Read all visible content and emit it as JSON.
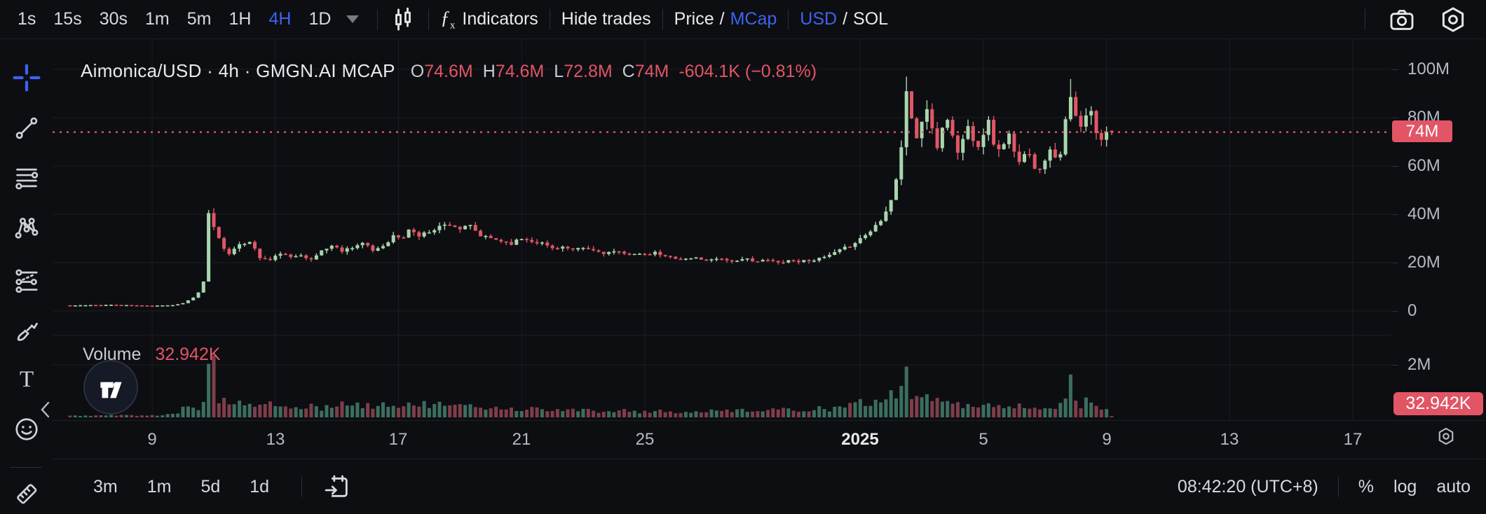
{
  "topbar": {
    "timeframes": [
      "1s",
      "15s",
      "30s",
      "1m",
      "5m",
      "1H",
      "4H",
      "1D"
    ],
    "active_timeframe": "4H",
    "indicators_label": "Indicators",
    "hide_trades_label": "Hide trades",
    "price_label": "Price",
    "mcap_label": "MCap",
    "usd_label": "USD",
    "sol_label": "SOL",
    "slash": "/"
  },
  "sidebar": {
    "active_tool": "crosshair-tool",
    "tools": [
      "crosshair-tool",
      "trend-line-tool",
      "fib-retracement-tool",
      "xabcd-pattern-tool",
      "long-position-tool",
      "brush-tool",
      "text-tool",
      "emoji-tool",
      "measure-tool"
    ]
  },
  "chart": {
    "title": "Aimonica/USD · 4h · GMGN.AI MCAP",
    "ohlc": {
      "o_label": "O",
      "o": "74.6M",
      "h_label": "H",
      "h": "74.6M",
      "l_label": "L",
      "l": "72.8M",
      "c_label": "C",
      "c": "74M",
      "change": "-604.1K (−0.81%)"
    },
    "current_price_label": "74M",
    "volume": {
      "label": "Volume",
      "value": "32.942K",
      "axis_label": "2M",
      "badge": "32.942K"
    }
  },
  "bottom_bar": {
    "ranges": [
      "3m",
      "1m",
      "5d",
      "1d"
    ],
    "time": "08:42:20 (UTC+8)",
    "percent": "%",
    "log": "log",
    "auto": "auto"
  },
  "colors": {
    "background": "#0d0e12",
    "accent_blue": "#3d63f0",
    "candle_up": "#a8d6ad",
    "candle_down": "#e25666",
    "volume_up": "#3c6e5f",
    "volume_down": "#7e3e4a",
    "badge_red": "#e25565",
    "grid": "#1a1d23",
    "text_primary": "#e8eaed",
    "text_secondary": "#b6bac3"
  },
  "chart_data": {
    "type": "candlestick",
    "symbol": "Aimonica/USD",
    "interval": "4h",
    "source": "GMGN.AI",
    "scale": "MCAP",
    "ohlc_current": {
      "open": "74.6M",
      "high": "74.6M",
      "low": "72.8M",
      "close": "74M",
      "change": "-604.1K (−0.81%)"
    },
    "y_axis": {
      "unit": "USD market cap, millions",
      "ticks": [
        100,
        80,
        60,
        40,
        20,
        0
      ],
      "tick_labels": [
        "100M",
        "80M",
        "60M",
        "40M",
        "20M",
        "0"
      ],
      "current_price": 74
    },
    "volume_axis": {
      "ticks": [
        2
      ],
      "tick_labels": [
        "2M"
      ],
      "current_volume": "32.942K"
    },
    "time_axis": [
      {
        "label": "9",
        "index": 16
      },
      {
        "label": "13",
        "index": 40
      },
      {
        "label": "17",
        "index": 64
      },
      {
        "label": "21",
        "index": 88
      },
      {
        "label": "25",
        "index": 112
      },
      {
        "label": "2025",
        "index": 154,
        "bold": true
      },
      {
        "label": "5",
        "index": 178
      },
      {
        "label": "9",
        "index": 202
      },
      {
        "label": "13",
        "index": 226
      },
      {
        "label": "17",
        "index": 250
      }
    ],
    "candle_count": 204,
    "price_keypoints": [
      [
        0,
        2.3
      ],
      [
        8,
        2.5
      ],
      [
        16,
        2.2
      ],
      [
        20,
        2.4
      ],
      [
        22,
        3.2
      ],
      [
        24,
        5.5
      ],
      [
        25,
        7.5
      ],
      [
        26,
        12
      ],
      [
        27,
        40
      ],
      [
        28,
        35
      ],
      [
        29,
        30
      ],
      [
        30,
        26
      ],
      [
        31,
        24
      ],
      [
        33,
        27
      ],
      [
        35,
        29
      ],
      [
        37,
        22
      ],
      [
        39,
        21
      ],
      [
        41,
        24
      ],
      [
        43,
        22
      ],
      [
        45,
        23.5
      ],
      [
        47,
        21
      ],
      [
        49,
        25
      ],
      [
        51,
        27
      ],
      [
        53,
        25
      ],
      [
        55,
        26.5
      ],
      [
        57,
        28
      ],
      [
        59,
        25
      ],
      [
        61,
        27
      ],
      [
        63,
        31
      ],
      [
        65,
        30
      ],
      [
        66,
        34
      ],
      [
        68,
        31
      ],
      [
        70,
        33
      ],
      [
        72,
        35
      ],
      [
        74,
        36
      ],
      [
        76,
        34
      ],
      [
        78,
        35
      ],
      [
        80,
        31
      ],
      [
        82,
        30
      ],
      [
        84,
        29
      ],
      [
        86,
        28
      ],
      [
        88,
        30
      ],
      [
        90,
        29
      ],
      [
        92,
        28
      ],
      [
        94,
        26
      ],
      [
        96,
        26.5
      ],
      [
        98,
        25
      ],
      [
        100,
        26
      ],
      [
        102,
        25
      ],
      [
        104,
        24
      ],
      [
        106,
        24.5
      ],
      [
        108,
        23.5
      ],
      [
        110,
        24
      ],
      [
        112,
        23
      ],
      [
        114,
        24
      ],
      [
        116,
        22.5
      ],
      [
        118,
        22
      ],
      [
        120,
        21.5
      ],
      [
        122,
        22
      ],
      [
        124,
        21
      ],
      [
        126,
        22
      ],
      [
        128,
        21
      ],
      [
        130,
        20.5
      ],
      [
        132,
        21.5
      ],
      [
        134,
        20.5
      ],
      [
        136,
        21
      ],
      [
        138,
        20
      ],
      [
        140,
        21
      ],
      [
        142,
        20.5
      ],
      [
        144,
        21
      ],
      [
        146,
        21.5
      ],
      [
        148,
        23
      ],
      [
        150,
        25
      ],
      [
        152,
        27
      ],
      [
        154,
        30
      ],
      [
        156,
        33
      ],
      [
        158,
        38
      ],
      [
        160,
        46
      ],
      [
        161,
        55
      ],
      [
        162,
        68
      ],
      [
        163,
        90
      ],
      [
        164,
        80
      ],
      [
        165,
        72
      ],
      [
        166,
        78
      ],
      [
        167,
        84
      ],
      [
        168,
        74
      ],
      [
        169,
        68
      ],
      [
        170,
        76
      ],
      [
        171,
        80
      ],
      [
        172,
        72
      ],
      [
        173,
        66
      ],
      [
        174,
        71
      ],
      [
        175,
        76
      ],
      [
        176,
        72
      ],
      [
        177,
        69
      ],
      [
        178,
        74
      ],
      [
        179,
        78
      ],
      [
        180,
        70
      ],
      [
        181,
        66
      ],
      [
        182,
        70
      ],
      [
        183,
        73
      ],
      [
        184,
        65
      ],
      [
        185,
        61
      ],
      [
        186,
        64
      ],
      [
        187,
        66
      ],
      [
        188,
        60
      ],
      [
        189,
        58
      ],
      [
        190,
        63
      ],
      [
        191,
        68
      ],
      [
        192,
        64
      ],
      [
        193,
        66
      ],
      [
        194,
        78
      ],
      [
        195,
        88
      ],
      [
        196,
        80
      ],
      [
        197,
        76
      ],
      [
        198,
        80
      ],
      [
        199,
        82
      ],
      [
        200,
        74
      ],
      [
        201,
        70
      ],
      [
        202,
        75
      ],
      [
        203,
        74
      ]
    ],
    "volume_keypoints": [
      [
        0,
        0.06
      ],
      [
        10,
        0.08
      ],
      [
        18,
        0.07
      ],
      [
        21,
        0.2
      ],
      [
        23,
        0.5
      ],
      [
        25,
        0.35
      ],
      [
        26,
        0.6
      ],
      [
        27,
        1.6
      ],
      [
        28,
        2.75
      ],
      [
        29,
        0.7
      ],
      [
        31,
        0.55
      ],
      [
        33,
        0.5
      ],
      [
        35,
        0.55
      ],
      [
        37,
        0.4
      ],
      [
        39,
        0.5
      ],
      [
        41,
        0.35
      ],
      [
        43,
        0.42
      ],
      [
        45,
        0.3
      ],
      [
        47,
        0.45
      ],
      [
        49,
        0.35
      ],
      [
        51,
        0.4
      ],
      [
        53,
        0.5
      ],
      [
        55,
        0.55
      ],
      [
        57,
        0.4
      ],
      [
        59,
        0.45
      ],
      [
        61,
        0.5
      ],
      [
        63,
        0.4
      ],
      [
        65,
        0.55
      ],
      [
        67,
        0.45
      ],
      [
        69,
        0.5
      ],
      [
        71,
        0.45
      ],
      [
        73,
        0.5
      ],
      [
        75,
        0.4
      ],
      [
        77,
        0.45
      ],
      [
        79,
        0.35
      ],
      [
        83,
        0.4
      ],
      [
        87,
        0.3
      ],
      [
        91,
        0.35
      ],
      [
        95,
        0.25
      ],
      [
        99,
        0.3
      ],
      [
        103,
        0.22
      ],
      [
        107,
        0.28
      ],
      [
        111,
        0.2
      ],
      [
        115,
        0.25
      ],
      [
        119,
        0.18
      ],
      [
        123,
        0.22
      ],
      [
        127,
        0.25
      ],
      [
        131,
        0.3
      ],
      [
        135,
        0.25
      ],
      [
        139,
        0.3
      ],
      [
        143,
        0.28
      ],
      [
        146,
        0.35
      ],
      [
        148,
        0.3
      ],
      [
        150,
        0.4
      ],
      [
        152,
        0.45
      ],
      [
        154,
        0.55
      ],
      [
        156,
        0.5
      ],
      [
        158,
        0.65
      ],
      [
        160,
        0.9
      ],
      [
        162,
        1.1
      ],
      [
        163,
        1.9
      ],
      [
        164,
        0.8
      ],
      [
        165,
        0.95
      ],
      [
        166,
        0.7
      ],
      [
        167,
        0.75
      ],
      [
        168,
        0.6
      ],
      [
        169,
        0.7
      ],
      [
        170,
        0.55
      ],
      [
        171,
        0.65
      ],
      [
        172,
        0.5
      ],
      [
        173,
        0.7
      ],
      [
        174,
        0.45
      ],
      [
        175,
        0.55
      ],
      [
        176,
        0.4
      ],
      [
        177,
        0.5
      ],
      [
        178,
        0.45
      ],
      [
        179,
        0.55
      ],
      [
        180,
        0.4
      ],
      [
        181,
        0.5
      ],
      [
        182,
        0.35
      ],
      [
        183,
        0.45
      ],
      [
        184,
        0.4
      ],
      [
        185,
        0.55
      ],
      [
        186,
        0.35
      ],
      [
        187,
        0.3
      ],
      [
        188,
        0.4
      ],
      [
        189,
        0.35
      ],
      [
        190,
        0.3
      ],
      [
        191,
        0.45
      ],
      [
        192,
        0.35
      ],
      [
        193,
        0.5
      ],
      [
        194,
        0.9
      ],
      [
        195,
        2.05
      ],
      [
        196,
        0.5
      ],
      [
        197,
        0.45
      ],
      [
        198,
        0.75
      ],
      [
        199,
        0.6
      ],
      [
        200,
        0.55
      ],
      [
        201,
        0.35
      ],
      [
        202,
        0.25
      ],
      [
        203,
        0.05
      ]
    ],
    "wick_overrides": {
      "28": 42.5,
      "163": 97,
      "195": 96
    },
    "last_candle": {
      "open": 74.6,
      "high": 74.6,
      "low": 72.8,
      "close": 74
    }
  }
}
